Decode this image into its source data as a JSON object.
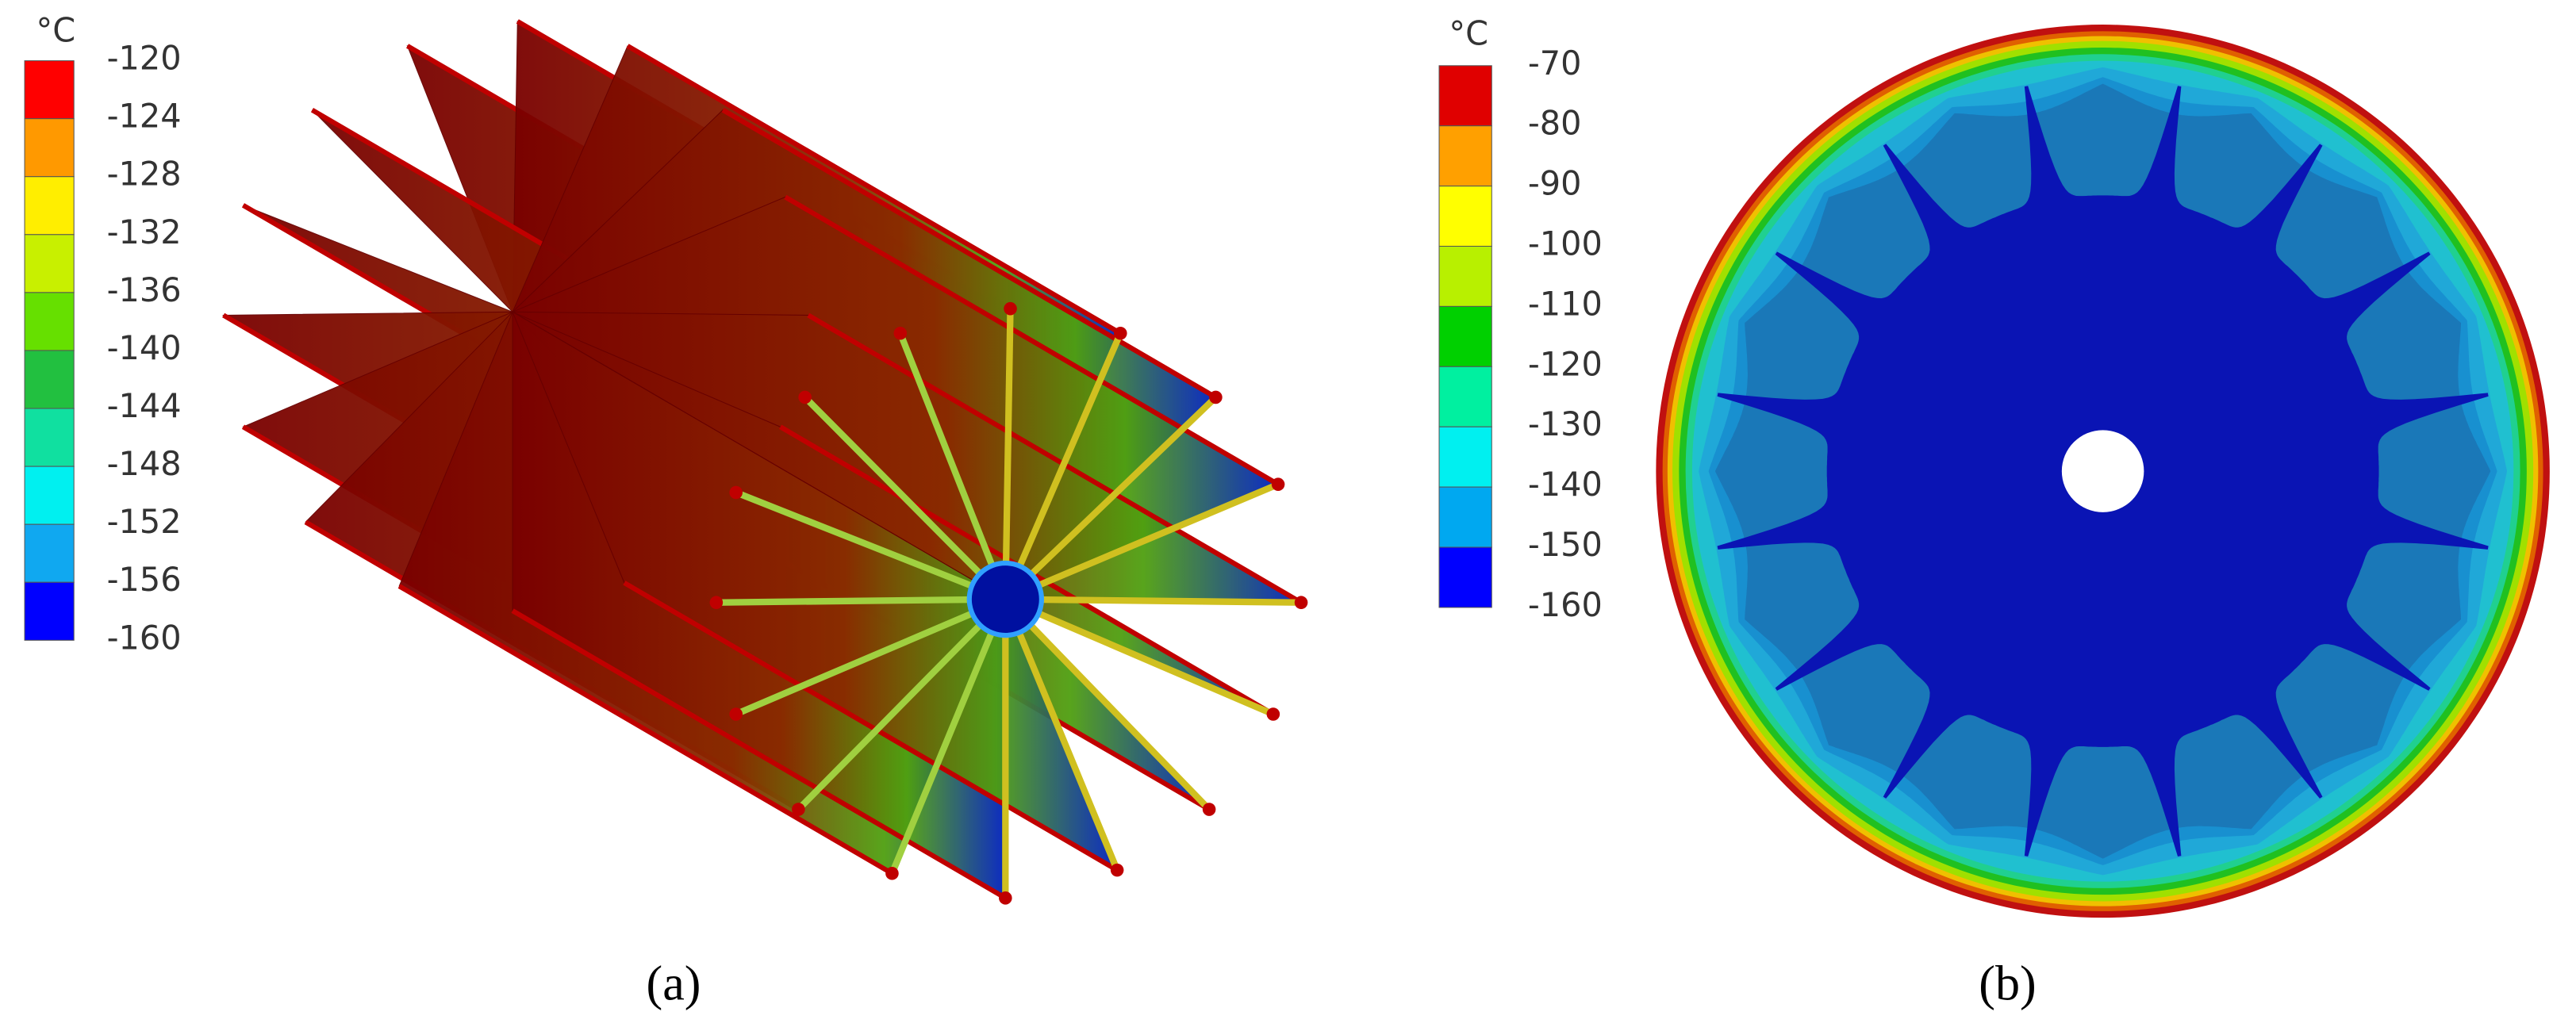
{
  "panels": [
    {
      "label": "(a)",
      "legend": {
        "unit": "°C",
        "labels": [
          -120,
          -124,
          -128,
          -132,
          -136,
          -140,
          -144,
          -148,
          -152,
          -156,
          -160
        ],
        "colors": [
          "#ff0000",
          "#ff9900",
          "#ffee00",
          "#c8f000",
          "#66e000",
          "#22c040",
          "#10e0a0",
          "#00f0f0",
          "#10a8f0",
          "#0000ff"
        ]
      }
    },
    {
      "label": "(b)",
      "legend": {
        "unit": "°C",
        "labels": [
          -70,
          -80,
          -90,
          -100,
          -110,
          -120,
          -130,
          -140,
          -150,
          -160
        ],
        "colors": [
          "#e00000",
          "#ffa000",
          "#ffff00",
          "#b8f000",
          "#00d000",
          "#00f0a0",
          "#00f0f0",
          "#00a8f0",
          "#0000ff"
        ]
      }
    }
  ]
}
